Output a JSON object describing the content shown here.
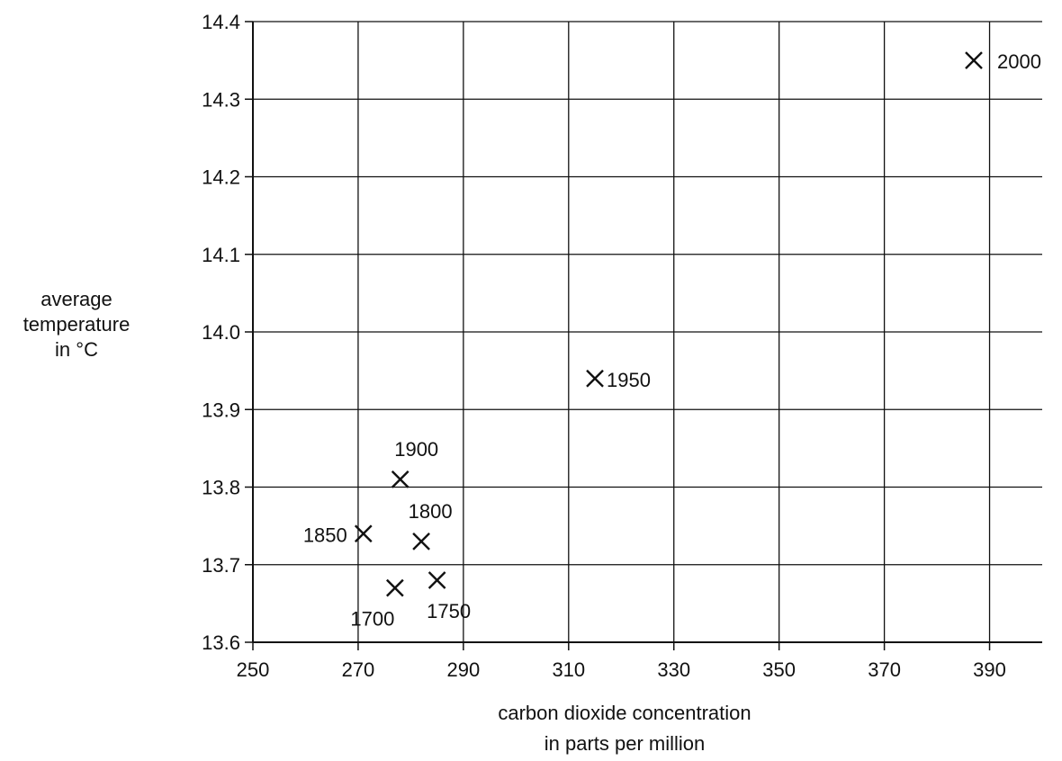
{
  "chart_data": {
    "type": "scatter",
    "xlabel": [
      "carbon dioxide concentration",
      "in parts per million"
    ],
    "ylabel": [
      "average",
      "temperature",
      "in °C"
    ],
    "xlim": [
      250,
      400
    ],
    "ylim": [
      13.6,
      14.4
    ],
    "x_ticks": [
      250,
      270,
      290,
      310,
      330,
      350,
      370,
      390
    ],
    "y_ticks": [
      "13.6",
      "13.7",
      "13.8",
      "13.9",
      "14.0",
      "14.1",
      "14.2",
      "14.3",
      "14.4"
    ],
    "grid": true,
    "marker": "x",
    "colors": {
      "ink": "#111111",
      "background": "#ffffff"
    },
    "points": [
      {
        "label": "1700",
        "x": 277,
        "y": 13.67
      },
      {
        "label": "1750",
        "x": 285,
        "y": 13.68
      },
      {
        "label": "1800",
        "x": 282,
        "y": 13.73
      },
      {
        "label": "1850",
        "x": 271,
        "y": 13.74
      },
      {
        "label": "1900",
        "x": 278,
        "y": 13.81
      },
      {
        "label": "1950",
        "x": 315,
        "y": 13.94
      },
      {
        "label": "2000",
        "x": 387,
        "y": 14.35
      }
    ]
  }
}
